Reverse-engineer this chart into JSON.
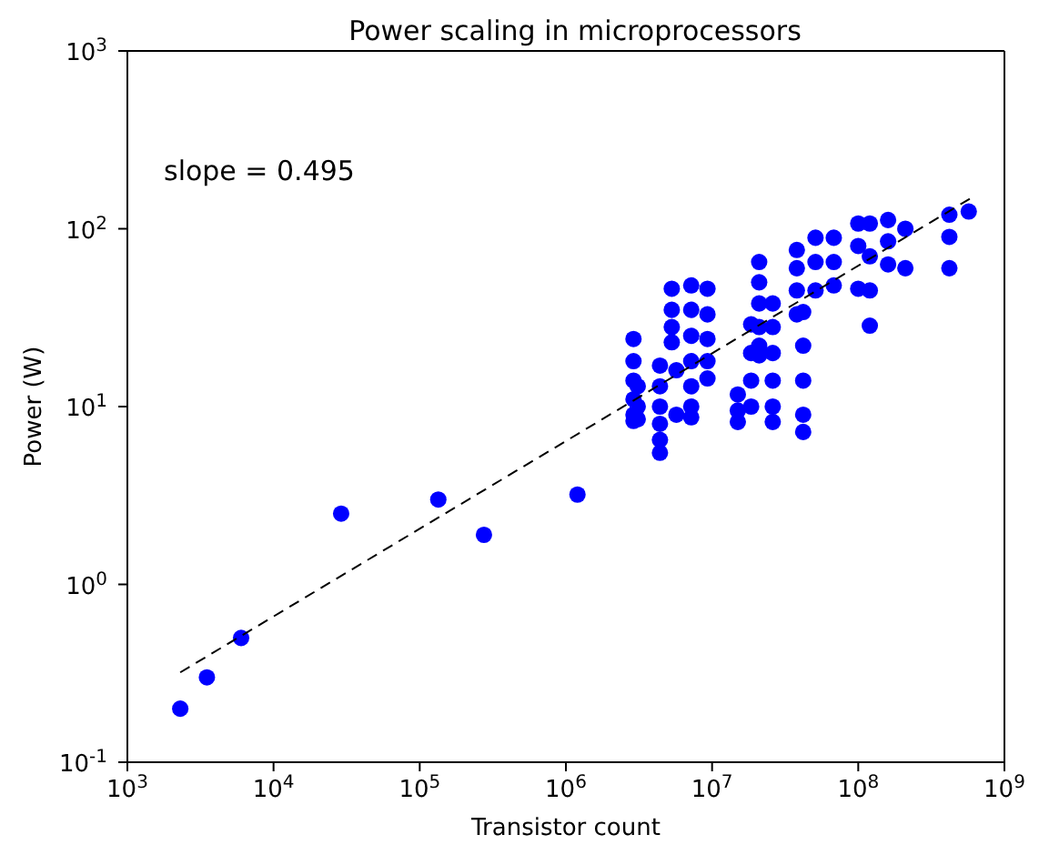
{
  "chart_data": {
    "type": "scatter",
    "title": "Power scaling in microprocessors",
    "xlabel": "Transistor count",
    "ylabel": "Power (W)",
    "log": "xy",
    "marker": "circle",
    "annotations": [
      "slope = 0.495"
    ],
    "xlim": [
      1000,
      1000000000
    ],
    "ylim": [
      0.1,
      1000
    ],
    "xticks": [
      {
        "value": 1000,
        "label": "10$^{3}$"
      },
      {
        "value": 10000,
        "label": "10$^{4}$"
      },
      {
        "value": 100000,
        "label": "10$^{5}$"
      },
      {
        "value": 1000000,
        "label": "10$^{6}$"
      },
      {
        "value": 10000000,
        "label": "10$^{7}$"
      },
      {
        "value": 100000000,
        "label": "10$^{8}$"
      },
      {
        "value": 1000000000,
        "label": "10$^{9}$"
      }
    ],
    "yticks": [
      {
        "value": 0.1,
        "label": "10$^{-1}$"
      },
      {
        "value": 1,
        "label": "10$^{0}$"
      },
      {
        "value": 10,
        "label": "10$^{1}$"
      },
      {
        "value": 100,
        "label": "10$^{2}$"
      },
      {
        "value": 1000,
        "label": "10$^{3}$"
      }
    ],
    "series": [
      {
        "color": "#0000ff",
        "x": [
          2300,
          3500,
          6000,
          29000,
          134000,
          275000,
          1200000,
          2900000,
          2900000,
          2900000,
          2900000,
          2900000,
          2900000,
          3100000,
          3100000,
          3100000,
          4400000,
          4400000,
          4400000,
          4400000,
          4400000,
          4400000,
          5300000,
          5300000,
          5300000,
          5300000,
          5700000,
          5700000,
          7200000,
          7200000,
          7200000,
          7200000,
          7200000,
          7200000,
          7200000,
          9300000,
          9300000,
          9300000,
          9300000,
          9300000,
          15000000,
          15000000,
          15000000,
          18500000,
          18500000,
          18500000,
          18500000,
          21000000,
          21000000,
          21000000,
          21000000,
          21000000,
          21000000,
          26000000,
          26000000,
          26000000,
          26000000,
          26000000,
          26000000,
          38000000,
          38000000,
          38000000,
          38000000,
          42000000,
          42000000,
          42000000,
          42000000,
          42000000,
          51000000,
          51000000,
          51000000,
          68000000,
          68000000,
          68000000,
          100000000,
          100000000,
          100000000,
          120000000,
          120000000,
          120000000,
          120000000,
          160000000,
          160000000,
          160000000,
          210000000,
          210000000,
          420000000,
          420000000,
          420000000,
          570000000
        ],
        "values": [
          0.2,
          0.3,
          0.5,
          2.5,
          3,
          1.9,
          3.2,
          24,
          18,
          14,
          11,
          9,
          8.3,
          13,
          10,
          8.5,
          17,
          13,
          10,
          8,
          6.5,
          5.5,
          46,
          35,
          28,
          23,
          16,
          9,
          48,
          35,
          25,
          18,
          13,
          10,
          8.7,
          46,
          33,
          24,
          18,
          14.4,
          11.7,
          9.5,
          8.2,
          29,
          20,
          14,
          10,
          65,
          50,
          38,
          28,
          22,
          19.4,
          38,
          28,
          20,
          14,
          10,
          8.2,
          76,
          60,
          45,
          33,
          34,
          22,
          14,
          9,
          7.2,
          89,
          65,
          45,
          89,
          65,
          48,
          107,
          80,
          46,
          107,
          70,
          45,
          28.5,
          112,
          85,
          63,
          100,
          60,
          120,
          90,
          60,
          125
        ]
      },
      {
        "type": "line",
        "color": "#000000",
        "line_style": "dashed",
        "marker": "none",
        "x": [
          2300,
          600000000
        ],
        "values": [
          0.32,
          150
        ]
      }
    ]
  }
}
